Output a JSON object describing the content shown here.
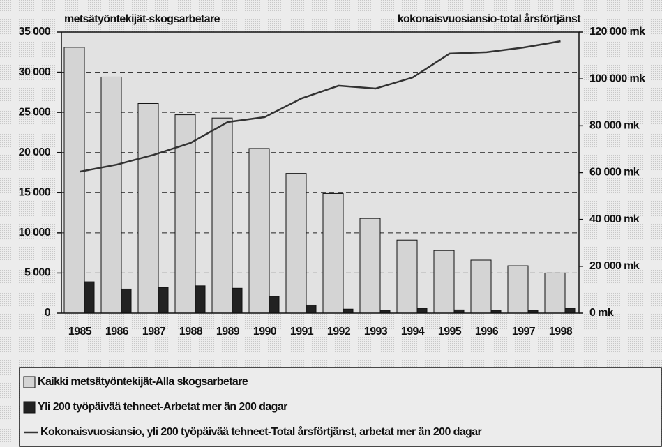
{
  "chart_data": {
    "type": "bar",
    "title": "metsätyöntekijät-skogsarbetare",
    "subtitle": "kokonaisvuosiansio-total årsförtjänst",
    "categories": [
      "1985",
      "1986",
      "1987",
      "1988",
      "1989",
      "1990",
      "1991",
      "1992",
      "1993",
      "1994",
      "1995",
      "1996",
      "1997",
      "1998"
    ],
    "series": [
      {
        "name": "Kaikki metsätyöntekijät-Alla skogsarbetare",
        "color": "#d4d4d4",
        "values": [
          33100,
          29400,
          26100,
          24700,
          24300,
          20500,
          17400,
          14900,
          11800,
          9100,
          7800,
          6600,
          5900,
          5000
        ]
      },
      {
        "name": "Yli 200 työpäivää tehneet-Arbetat mer än 200 dagar",
        "color": "#222222",
        "values": [
          3900,
          3000,
          3200,
          3400,
          3100,
          2100,
          1000,
          500,
          300,
          600,
          400,
          300,
          300,
          600
        ]
      },
      {
        "name": "Kokonaisvuosiansio, yli 200 työpäivää tehneet-Total årsförtjänst, arbetat mer än 200 dagar",
        "color": "#333333",
        "type": "line",
        "axis": "y2",
        "values": [
          60400,
          63400,
          67600,
          72700,
          81600,
          83700,
          91700,
          97100,
          95900,
          100600,
          110800,
          111400,
          113400,
          116100
        ]
      }
    ],
    "ylim": [
      0,
      35000
    ],
    "yticks": [
      0,
      {
        "value": 5000,
        "label": "5 000"
      },
      {
        "value": 10000,
        "label": "10 000"
      },
      {
        "value": 15000,
        "label": "15 000"
      },
      {
        "value": 20000,
        "label": "20 000"
      },
      {
        "value": 25000,
        "label": "25 000"
      },
      {
        "value": 30000,
        "label": "30 000"
      },
      {
        "value": 35000,
        "label": "35 000"
      }
    ],
    "y2lim": [
      0,
      120000
    ],
    "y2ticks": [
      {
        "value": 0,
        "label": "0 mk"
      },
      {
        "value": 20000,
        "label": "20 000 mk"
      },
      {
        "value": 40000,
        "label": "40 000 mk"
      },
      {
        "value": 60000,
        "label": "60 000 mk"
      },
      {
        "value": 80000,
        "label": "80 000 mk"
      },
      {
        "value": 100000,
        "label": "100 000 mk"
      },
      {
        "value": 120000,
        "label": "120 000 mk"
      }
    ],
    "grid": true
  }
}
